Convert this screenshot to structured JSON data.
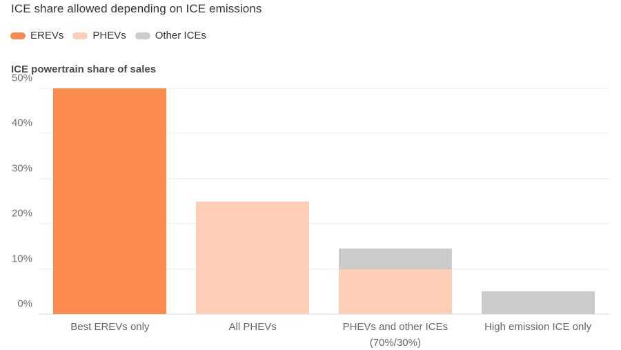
{
  "chart_data": {
    "type": "bar",
    "stacked": true,
    "title": "ICE share allowed depending on ICE emissions",
    "xlabel": "",
    "ylabel": "ICE powertrain share of sales",
    "ylim": [
      0,
      50
    ],
    "ytick_step": 10,
    "ytick_suffix": "%",
    "grid": true,
    "legend_position": "top-left",
    "categories": [
      "Best EREVs only",
      "All PHEVs",
      "PHEVs and other ICEs\n(70%/30%)",
      "High emission ICE only"
    ],
    "series": [
      {
        "name": "EREVs",
        "color": "#fb8a4f",
        "values": [
          50,
          0,
          0,
          0
        ]
      },
      {
        "name": "PHEVs",
        "color": "#fecfb6",
        "values": [
          0,
          25,
          10,
          0
        ]
      },
      {
        "name": "Other ICEs",
        "color": "#cbcbcb",
        "values": [
          0,
          0,
          4.5,
          5
        ]
      }
    ]
  },
  "colors": {
    "background": "#ffffff",
    "title_text": "#333333",
    "axis_title_text": "#4a4a4a",
    "tick_text": "#6e6e6e",
    "category_text": "#666666",
    "grid_line": "#e8e8e8",
    "baseline": "#d8d8d8"
  }
}
